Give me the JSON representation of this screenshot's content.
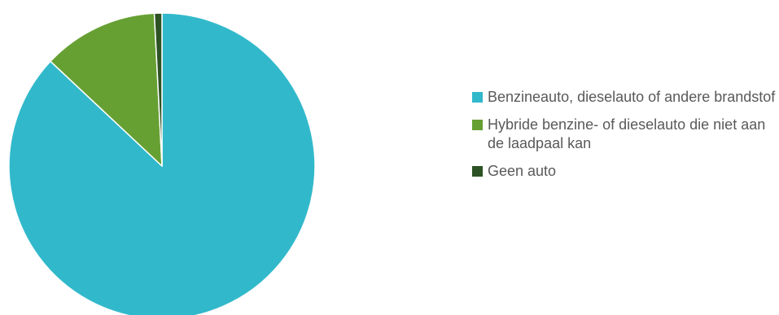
{
  "chart_data": {
    "type": "pie",
    "title": "",
    "categories": [
      "Benzineauto, dieselauto of andere brandstof",
      "Hybride benzine- of dieselauto die niet aan de laadpaal kan",
      "Geen auto"
    ],
    "values": [
      87.0,
      12.2,
      0.8
    ],
    "colors": [
      "#31B9CB",
      "#66A033",
      "#2D5224"
    ],
    "legend_position": "right"
  }
}
